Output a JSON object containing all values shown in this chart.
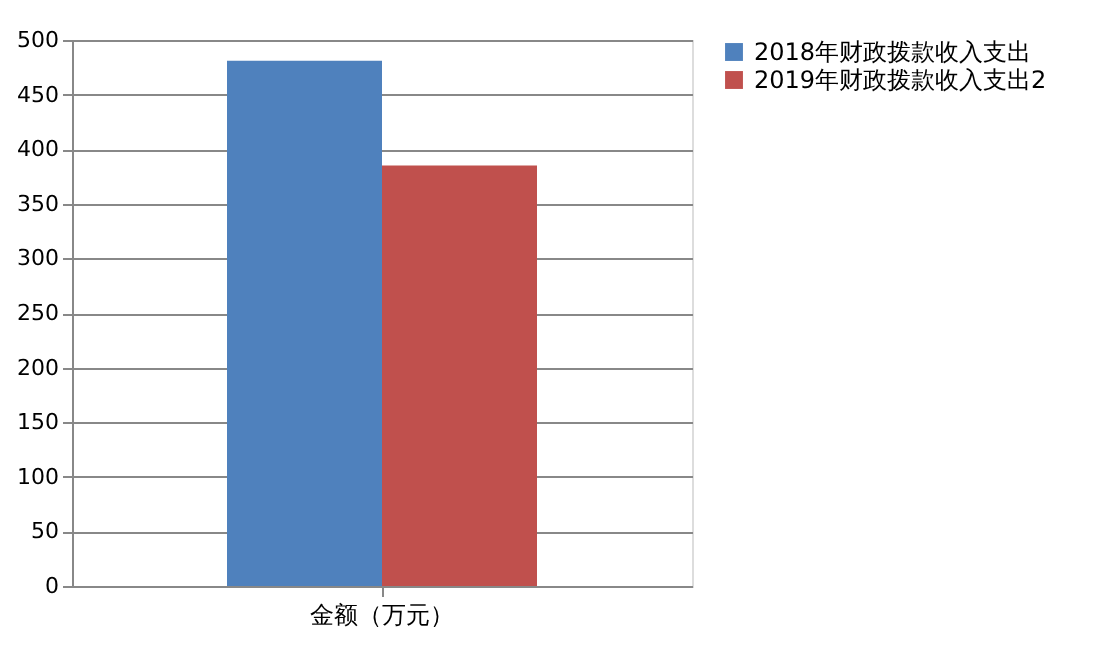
{
  "chart_data": {
    "type": "bar",
    "categories": [
      "金额（万元）"
    ],
    "series": [
      {
        "name": "2018年财政拨款收入支出",
        "color": "#4f81bd",
        "values": [
          481
        ]
      },
      {
        "name": "2019年财政拨款收入支出2",
        "color": "#c0504d",
        "values": [
          385
        ]
      }
    ],
    "ylim": [
      0,
      500
    ],
    "yticks": [
      0,
      50,
      100,
      150,
      200,
      250,
      300,
      350,
      400,
      450,
      500
    ],
    "grid": "y",
    "legend": "right"
  }
}
